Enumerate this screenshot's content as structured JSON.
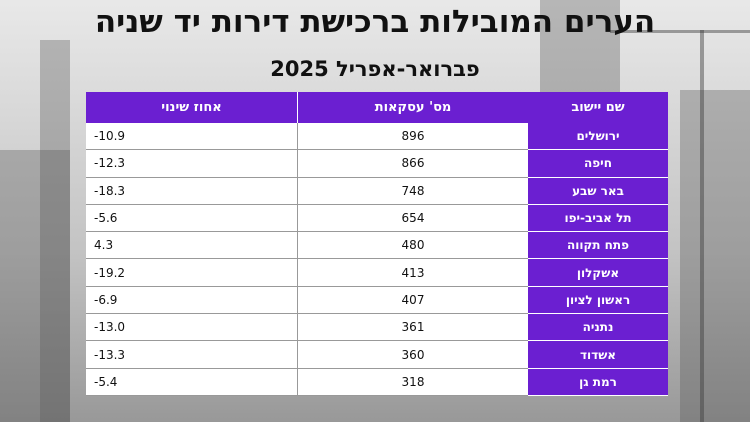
{
  "title": "הערים המובילות ברכישת דירות יד שניה",
  "subtitle": "פברואר-אפריל 2025",
  "colors": {
    "header": "#6b1fd1",
    "text": "#111111"
  },
  "chart_data": {
    "type": "table",
    "columns": [
      "שם יישוב",
      "מס' עסקאות",
      "אחוז שינוי"
    ],
    "rows": [
      {
        "city": "ירושלים",
        "deals": "896",
        "change": "-10.9"
      },
      {
        "city": "חיפה",
        "deals": "866",
        "change": "-12.3"
      },
      {
        "city": "באר שבע",
        "deals": "748",
        "change": "-18.3"
      },
      {
        "city": "תל אביב-יפו",
        "deals": "654",
        "change": "-5.6"
      },
      {
        "city": "פתח תקווה",
        "deals": "480",
        "change": "4.3"
      },
      {
        "city": "אשקלון",
        "deals": "413",
        "change": "-19.2"
      },
      {
        "city": "ראשון לציון",
        "deals": "407",
        "change": "-6.9"
      },
      {
        "city": "נתניה",
        "deals": "361",
        "change": "-13.0"
      },
      {
        "city": "אשדוד",
        "deals": "360",
        "change": "-13.3"
      },
      {
        "city": "רמת גן",
        "deals": "318",
        "change": "-5.4"
      }
    ]
  }
}
